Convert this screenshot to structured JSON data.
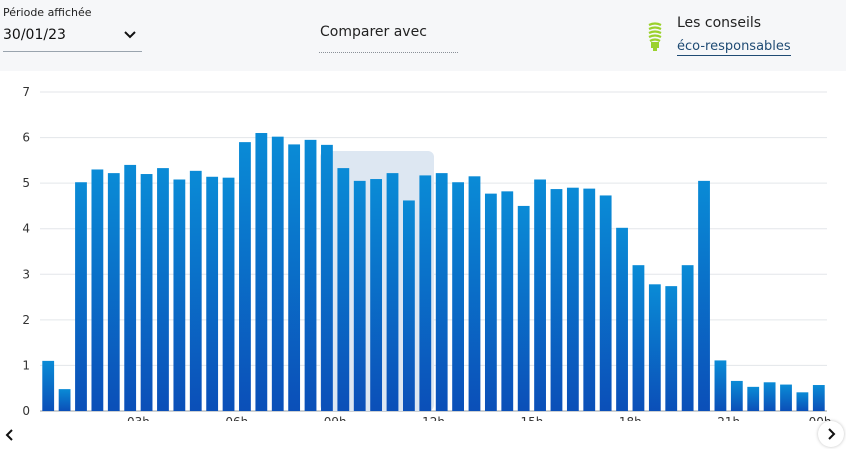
{
  "period": {
    "label": "Période affichée",
    "value": "30/01/23"
  },
  "compare": {
    "label": "Comparer avec"
  },
  "tips": {
    "title": "Les conseils",
    "link": "éco-responsables",
    "icon": "lightbulb-icon"
  },
  "colors": {
    "bar_top": "#0a8bd6",
    "bar_bottom": "#0b4fb8",
    "highlight": "#dde7f2",
    "bulb": "#9bd12c"
  },
  "chart_data": {
    "type": "bar",
    "ylim": [
      0,
      7
    ],
    "y_ticks": [
      "0",
      "1",
      "2",
      "3",
      "4",
      "5",
      "6",
      "7"
    ],
    "x_tick_labels": [
      "03h",
      "06h",
      "09h",
      "12h",
      "15h",
      "18h",
      "21h",
      "00h"
    ],
    "xlabel": "",
    "ylabel": "",
    "grid": true,
    "values": [
      1.1,
      0.48,
      5.02,
      5.3,
      5.22,
      5.4,
      5.2,
      5.33,
      5.08,
      5.27,
      5.14,
      5.12,
      5.9,
      6.1,
      6.02,
      5.85,
      5.95,
      5.84,
      5.33,
      5.05,
      5.09,
      5.22,
      4.62,
      5.17,
      5.22,
      5.02,
      5.15,
      4.77,
      4.82,
      4.5,
      5.08,
      4.87,
      4.9,
      4.88,
      4.73,
      4.02,
      3.2,
      2.78,
      2.74,
      3.2,
      5.05,
      1.11,
      0.66,
      0.53,
      0.63,
      0.58,
      0.41,
      0.57
    ]
  }
}
